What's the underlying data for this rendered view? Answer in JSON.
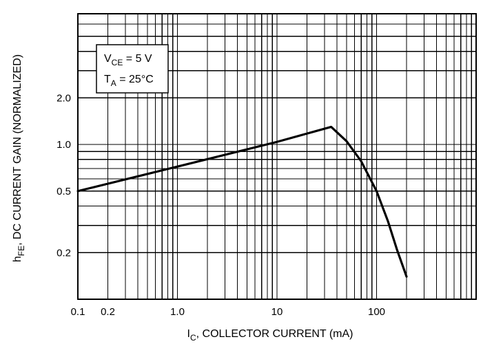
{
  "chart_data": {
    "type": "line",
    "title": "",
    "xscale": "log",
    "yscale": "log",
    "xlim": [
      0.1,
      1000
    ],
    "ylim": [
      0.1,
      7
    ],
    "grid": true,
    "legend": "none",
    "xlabel": {
      "prefix": "I",
      "sub": "C",
      "suffix": ", COLLECTOR CURRENT (mA)"
    },
    "ylabel": {
      "prefix": "h",
      "sub": "FE",
      "suffix": ", DC CURRENT GAIN (NORMALIZED)"
    },
    "x_ticks": [
      {
        "value": 0.1,
        "label": "0.1"
      },
      {
        "value": 0.2,
        "label": "0.2"
      },
      {
        "value": 1,
        "label": "1.0"
      },
      {
        "value": 10,
        "label": "10"
      },
      {
        "value": 100,
        "label": "100"
      }
    ],
    "y_ticks": [
      {
        "value": 0.2,
        "label": "0.2"
      },
      {
        "value": 0.5,
        "label": "0.5"
      },
      {
        "value": 1,
        "label": "1.0"
      },
      {
        "value": 2,
        "label": "2.0"
      }
    ],
    "annotation": {
      "lines": [
        {
          "prefix": "V",
          "sub": "CE",
          "suffix": " = 5 V"
        },
        {
          "prefix": "T",
          "sub": "A",
          "suffix": " = 25°C"
        }
      ]
    },
    "series": [
      {
        "x": [
          0.1,
          1,
          10,
          35,
          50,
          70,
          100,
          130,
          160,
          200
        ],
        "y": [
          0.5,
          0.72,
          1.04,
          1.3,
          1.05,
          0.78,
          0.5,
          0.32,
          0.21,
          0.14
        ]
      }
    ]
  }
}
